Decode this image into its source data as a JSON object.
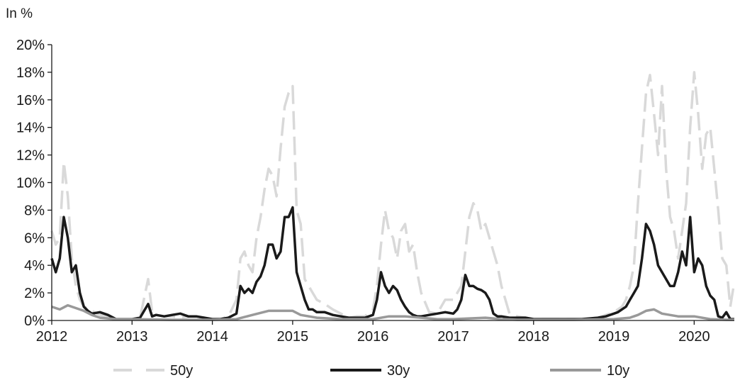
{
  "chart_data": {
    "type": "line",
    "unit_label": "In %",
    "xlim": [
      2012,
      2020.5
    ],
    "ylim": [
      0,
      20
    ],
    "y_ticks": [
      0,
      2,
      4,
      6,
      8,
      10,
      12,
      14,
      16,
      18,
      20
    ],
    "y_tick_labels": [
      "0%",
      "2%",
      "4%",
      "6%",
      "8%",
      "10%",
      "12%",
      "14%",
      "16%",
      "18%",
      "20%"
    ],
    "x_ticks": [
      2012,
      2013,
      2014,
      2015,
      2016,
      2017,
      2018,
      2019,
      2020
    ],
    "x_tick_labels": [
      "2012",
      "2013",
      "2014",
      "2015",
      "2016",
      "2017",
      "2018",
      "2019",
      "2020"
    ],
    "grid": false,
    "legend_position": "bottom",
    "series": [
      {
        "name": "50y",
        "color": "#d9d9d9",
        "dash": "dashed",
        "x": [
          2012.0,
          2012.05,
          2012.1,
          2012.15,
          2012.2,
          2012.25,
          2012.3,
          2012.35,
          2012.4,
          2012.45,
          2012.5,
          2012.6,
          2012.7,
          2012.8,
          2012.9,
          2013.0,
          2013.1,
          2013.2,
          2013.25,
          2013.3,
          2013.4,
          2013.5,
          2013.6,
          2013.7,
          2013.8,
          2013.9,
          2014.0,
          2014.1,
          2014.2,
          2014.3,
          2014.35,
          2014.4,
          2014.45,
          2014.5,
          2014.55,
          2014.6,
          2014.65,
          2014.7,
          2014.75,
          2014.8,
          2014.85,
          2014.9,
          2014.95,
          2015.0,
          2015.05,
          2015.1,
          2015.15,
          2015.2,
          2015.25,
          2015.3,
          2015.4,
          2015.5,
          2015.6,
          2015.7,
          2015.8,
          2015.9,
          2016.0,
          2016.05,
          2016.1,
          2016.15,
          2016.2,
          2016.25,
          2016.3,
          2016.35,
          2016.4,
          2016.45,
          2016.5,
          2016.55,
          2016.6,
          2016.7,
          2016.8,
          2016.9,
          2017.0,
          2017.05,
          2017.1,
          2017.15,
          2017.2,
          2017.25,
          2017.3,
          2017.35,
          2017.4,
          2017.45,
          2017.5,
          2017.55,
          2017.6,
          2017.7,
          2017.8,
          2017.9,
          2018.0,
          2018.2,
          2018.4,
          2018.6,
          2018.8,
          2018.9,
          2019.0,
          2019.05,
          2019.1,
          2019.15,
          2019.2,
          2019.25,
          2019.3,
          2019.35,
          2019.4,
          2019.45,
          2019.5,
          2019.55,
          2019.6,
          2019.65,
          2019.7,
          2019.75,
          2019.8,
          2019.85,
          2019.9,
          2019.95,
          2020.0,
          2020.05,
          2020.1,
          2020.15,
          2020.2,
          2020.25,
          2020.3,
          2020.35,
          2020.4,
          2020.45,
          2020.5
        ],
        "y": [
          6.5,
          5.5,
          6.0,
          11.5,
          9.0,
          4.5,
          2.5,
          1.5,
          1.0,
          0.9,
          0.7,
          0.4,
          0.3,
          0.1,
          0.1,
          0.1,
          0.2,
          3.0,
          0.6,
          0.4,
          0.3,
          0.3,
          0.2,
          0.3,
          0.3,
          0.2,
          0.1,
          0.1,
          0.3,
          1.5,
          4.5,
          5.0,
          4.0,
          3.5,
          6.0,
          7.5,
          9.5,
          11.0,
          10.5,
          9.0,
          12.5,
          15.5,
          16.5,
          17.0,
          8.0,
          7.0,
          3.0,
          2.5,
          2.0,
          1.5,
          1.2,
          0.8,
          0.5,
          0.2,
          0.3,
          0.3,
          0.8,
          2.5,
          5.5,
          8.0,
          6.5,
          6.0,
          4.5,
          6.5,
          7.0,
          5.0,
          5.5,
          3.5,
          2.0,
          0.6,
          0.5,
          1.5,
          1.5,
          2.0,
          2.5,
          5.0,
          7.5,
          8.5,
          8.0,
          6.5,
          7.0,
          6.0,
          5.0,
          4.0,
          2.5,
          0.5,
          0.3,
          0.2,
          0.1,
          0.1,
          0.1,
          0.1,
          0.2,
          0.4,
          0.6,
          0.8,
          1.0,
          1.5,
          2.5,
          4.0,
          8.5,
          12.5,
          16.5,
          17.8,
          15.0,
          12.0,
          17.0,
          11.0,
          7.5,
          6.5,
          4.5,
          6.5,
          8.5,
          14.0,
          18.0,
          15.0,
          11.0,
          13.5,
          14.0,
          11.0,
          8.0,
          4.5,
          4.0,
          1.0,
          2.8
        ]
      },
      {
        "name": "30y",
        "color": "#1a1a1a",
        "dash": "solid",
        "x": [
          2012.0,
          2012.05,
          2012.1,
          2012.15,
          2012.2,
          2012.25,
          2012.3,
          2012.35,
          2012.4,
          2012.45,
          2012.5,
          2012.6,
          2012.7,
          2012.8,
          2012.9,
          2013.0,
          2013.1,
          2013.2,
          2013.25,
          2013.3,
          2013.4,
          2013.5,
          2013.6,
          2013.7,
          2013.8,
          2013.9,
          2014.0,
          2014.1,
          2014.2,
          2014.3,
          2014.35,
          2014.4,
          2014.45,
          2014.5,
          2014.55,
          2014.6,
          2014.65,
          2014.7,
          2014.75,
          2014.8,
          2014.85,
          2014.9,
          2014.95,
          2015.0,
          2015.05,
          2015.1,
          2015.15,
          2015.2,
          2015.25,
          2015.3,
          2015.4,
          2015.5,
          2015.6,
          2015.7,
          2015.8,
          2015.9,
          2016.0,
          2016.05,
          2016.1,
          2016.15,
          2016.2,
          2016.25,
          2016.3,
          2016.35,
          2016.4,
          2016.45,
          2016.5,
          2016.55,
          2016.6,
          2016.7,
          2016.8,
          2016.9,
          2017.0,
          2017.05,
          2017.1,
          2017.15,
          2017.2,
          2017.25,
          2017.3,
          2017.35,
          2017.4,
          2017.45,
          2017.5,
          2017.55,
          2017.6,
          2017.7,
          2017.8,
          2017.9,
          2018.0,
          2018.2,
          2018.4,
          2018.6,
          2018.8,
          2018.9,
          2019.0,
          2019.05,
          2019.1,
          2019.15,
          2019.2,
          2019.25,
          2019.3,
          2019.35,
          2019.4,
          2019.45,
          2019.5,
          2019.55,
          2019.6,
          2019.65,
          2019.7,
          2019.75,
          2019.8,
          2019.85,
          2019.9,
          2019.95,
          2020.0,
          2020.05,
          2020.1,
          2020.15,
          2020.2,
          2020.25,
          2020.3,
          2020.35,
          2020.4,
          2020.45,
          2020.5
        ],
        "y": [
          4.5,
          3.5,
          4.5,
          7.5,
          6.0,
          3.5,
          4.0,
          2.0,
          1.0,
          0.7,
          0.5,
          0.6,
          0.4,
          0.1,
          0.1,
          0.1,
          0.2,
          1.2,
          0.3,
          0.4,
          0.3,
          0.4,
          0.5,
          0.3,
          0.3,
          0.2,
          0.1,
          0.1,
          0.2,
          0.5,
          2.5,
          2.0,
          2.3,
          2.0,
          2.8,
          3.2,
          4.0,
          5.5,
          5.5,
          4.5,
          5.0,
          7.5,
          7.5,
          8.2,
          3.5,
          2.5,
          1.5,
          0.8,
          0.8,
          0.6,
          0.6,
          0.4,
          0.3,
          0.2,
          0.2,
          0.2,
          0.4,
          1.5,
          3.5,
          2.5,
          2.0,
          2.5,
          2.2,
          1.5,
          1.0,
          0.6,
          0.4,
          0.3,
          0.3,
          0.4,
          0.5,
          0.6,
          0.5,
          0.8,
          1.5,
          3.3,
          2.5,
          2.5,
          2.3,
          2.2,
          2.0,
          1.5,
          0.5,
          0.3,
          0.3,
          0.2,
          0.2,
          0.2,
          0.1,
          0.1,
          0.1,
          0.1,
          0.2,
          0.3,
          0.5,
          0.6,
          0.8,
          1.0,
          1.5,
          2.0,
          2.5,
          4.5,
          7.0,
          6.5,
          5.5,
          4.0,
          3.5,
          3.0,
          2.5,
          2.5,
          3.5,
          5.0,
          4.0,
          7.5,
          3.5,
          4.5,
          4.0,
          2.5,
          1.8,
          1.5,
          0.3,
          0.2,
          0.6,
          0.1,
          0.1
        ]
      },
      {
        "name": "10y",
        "color": "#999999",
        "dash": "solid",
        "x": [
          2012.0,
          2012.1,
          2012.2,
          2012.3,
          2012.4,
          2012.5,
          2012.6,
          2012.8,
          2013.0,
          2013.5,
          2014.0,
          2014.3,
          2014.5,
          2014.7,
          2014.9,
          2015.0,
          2015.1,
          2015.3,
          2015.6,
          2016.0,
          2016.2,
          2016.4,
          2016.6,
          2016.8,
          2017.0,
          2017.2,
          2017.4,
          2017.6,
          2017.8,
          2018.0,
          2018.5,
          2019.0,
          2019.2,
          2019.3,
          2019.4,
          2019.5,
          2019.6,
          2019.8,
          2020.0,
          2020.2,
          2020.4,
          2020.5
        ],
        "y": [
          1.0,
          0.8,
          1.1,
          0.9,
          0.7,
          0.4,
          0.2,
          0.1,
          0.1,
          0.05,
          0.05,
          0.1,
          0.4,
          0.7,
          0.7,
          0.7,
          0.4,
          0.2,
          0.1,
          0.1,
          0.3,
          0.3,
          0.2,
          0.1,
          0.1,
          0.15,
          0.2,
          0.1,
          0.05,
          0.05,
          0.05,
          0.1,
          0.2,
          0.4,
          0.7,
          0.8,
          0.5,
          0.3,
          0.3,
          0.1,
          0.05,
          0.05
        ]
      }
    ]
  }
}
